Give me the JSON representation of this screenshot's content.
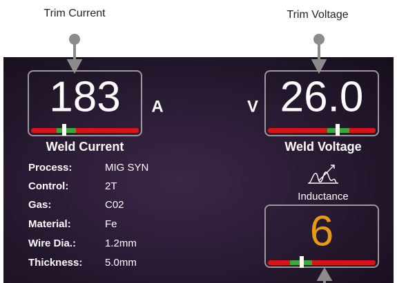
{
  "callouts": [
    "Trim Current",
    "Trim Voltage"
  ],
  "weld_current": {
    "value": "183",
    "unit": "A",
    "label": "Weld Current"
  },
  "weld_voltage": {
    "value": "26.0",
    "unit": "V",
    "label": "Weld Voltage"
  },
  "settings": [
    [
      "Process:",
      "MIG SYN"
    ],
    [
      "Control:",
      "2T"
    ],
    [
      "Gas:",
      "C02"
    ],
    [
      "Material:",
      "Fe"
    ],
    [
      "Wire Dia.:",
      "1.2mm"
    ],
    [
      "Thickness:",
      "5.0mm"
    ]
  ],
  "inductance": {
    "label": "Inductance",
    "value": "6"
  }
}
